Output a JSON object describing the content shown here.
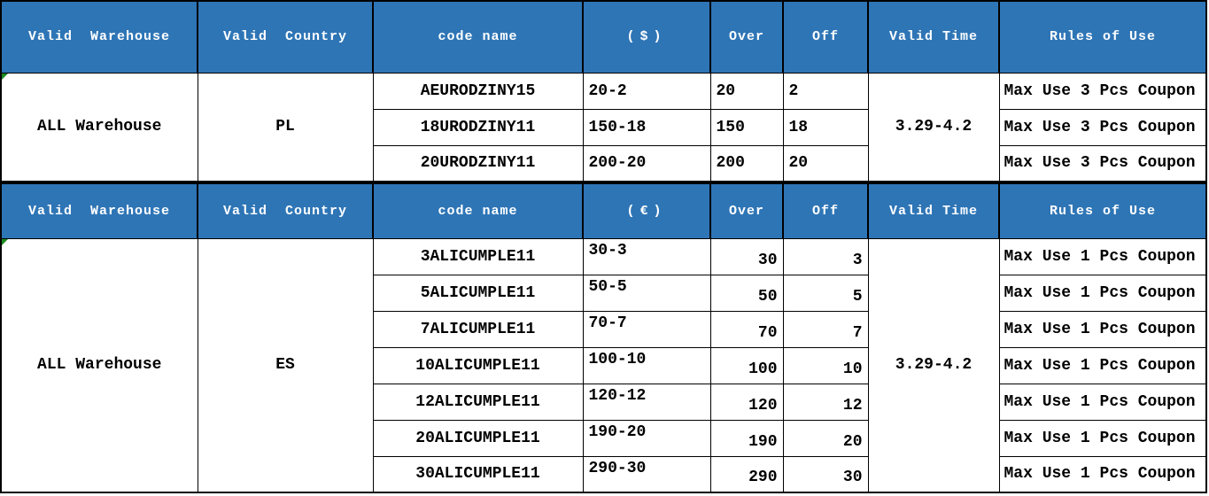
{
  "theme": {
    "header_bg": "#2E75B6",
    "header_text": "#FFFFFF",
    "border": "#000000",
    "cell_bg": "#FFFFFF",
    "cell_text": "#000000",
    "corner_marker_green": "#1E8A1E"
  },
  "sections": [
    {
      "id": "usd",
      "header": {
        "warehouse": "Valid  Warehouse",
        "country": "Valid  Country",
        "code": "code name",
        "amount": "($)",
        "over": "Over",
        "off": "Off",
        "time": "Valid Time",
        "rules": "Rules of Use"
      },
      "warehouse": "ALL Warehouse",
      "country": "PL",
      "valid_time": "3.29-4.2",
      "rows": [
        {
          "code": "AEURODZINY15",
          "amount": "20-2",
          "over": "20",
          "off": "2",
          "rules": "Max Use 3 Pcs Coupon"
        },
        {
          "code": "18URODZINY11",
          "amount": "150-18",
          "over": "150",
          "off": "18",
          "rules": "Max Use 3 Pcs Coupon"
        },
        {
          "code": "20URODZINY11",
          "amount": "200-20",
          "over": "200",
          "off": "20",
          "rules": "Max Use 3 Pcs Coupon"
        }
      ]
    },
    {
      "id": "eur",
      "header": {
        "warehouse": "Valid  Warehouse",
        "country": "Valid  Country",
        "code": "code name",
        "amount": "(€)",
        "over": "Over",
        "off": "Off",
        "time": "Valid Time",
        "rules": "Rules of Use"
      },
      "warehouse": "ALL Warehouse",
      "country": "ES",
      "valid_time": "3.29-4.2",
      "rows": [
        {
          "code": "3ALICUMPLE11",
          "amount": "30-3",
          "over": "30",
          "off": "3",
          "rules": "Max Use 1 Pcs Coupon"
        },
        {
          "code": "5ALICUMPLE11",
          "amount": "50-5",
          "over": "50",
          "off": "5",
          "rules": "Max Use 1 Pcs Coupon"
        },
        {
          "code": "7ALICUMPLE11",
          "amount": "70-7",
          "over": "70",
          "off": "7",
          "rules": "Max Use 1 Pcs Coupon"
        },
        {
          "code": "10ALICUMPLE11",
          "amount": "100-10",
          "over": "100",
          "off": "10",
          "rules": "Max Use 1 Pcs Coupon"
        },
        {
          "code": "12ALICUMPLE11",
          "amount": "120-12",
          "over": "120",
          "off": "12",
          "rules": "Max Use 1 Pcs Coupon"
        },
        {
          "code": "20ALICUMPLE11",
          "amount": "190-20",
          "over": "190",
          "off": "20",
          "rules": "Max Use 1 Pcs Coupon"
        },
        {
          "code": "30ALICUMPLE11",
          "amount": "290-30",
          "over": "290",
          "off": "30",
          "rules": "Max Use 1 Pcs Coupon"
        }
      ]
    }
  ]
}
